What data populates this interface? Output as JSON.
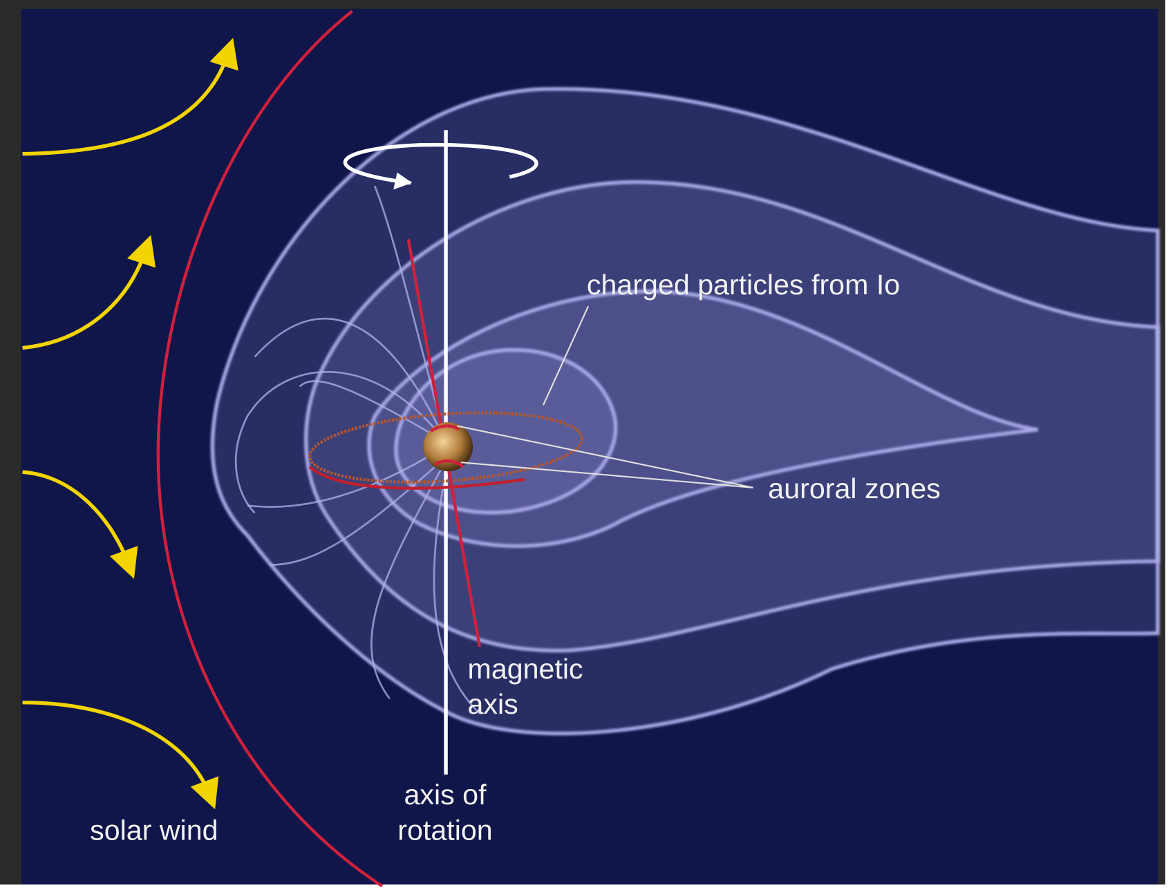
{
  "labels": {
    "charged_particles": "charged particles from Io",
    "auroral_zones": "auroral zones",
    "magnetic_axis": [
      "magnetic",
      "axis"
    ],
    "rotation_axis": [
      "axis of",
      "rotation"
    ],
    "solar_wind": "solar wind"
  }
}
